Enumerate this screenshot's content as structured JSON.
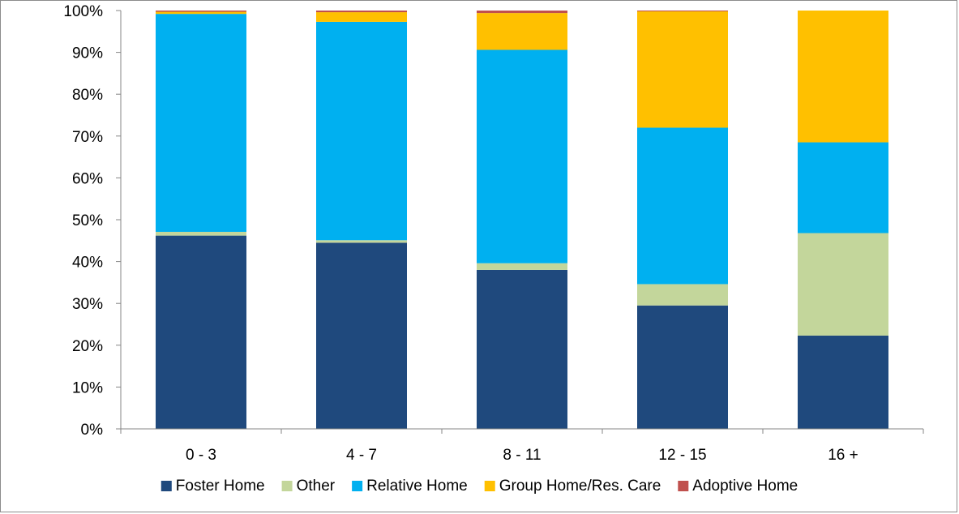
{
  "chart_data": {
    "type": "bar",
    "stacked": true,
    "percent": true,
    "categories": [
      "0 - 3",
      "4 - 7",
      "8 - 11",
      "12 - 15",
      "16 +"
    ],
    "series": [
      {
        "name": "Foster Home",
        "color": "#1F497D",
        "values": [
          46.2,
          44.5,
          38.0,
          29.5,
          22.3
        ]
      },
      {
        "name": "Other",
        "color": "#C3D69B",
        "values": [
          0.9,
          0.6,
          1.6,
          5.1,
          24.5
        ]
      },
      {
        "name": "Relative Home",
        "color": "#00B0F0",
        "values": [
          52.1,
          52.2,
          51.0,
          37.4,
          21.7
        ]
      },
      {
        "name": "Group Home/Res. Care",
        "color": "#FFC000",
        "values": [
          0.5,
          2.3,
          8.8,
          27.8,
          31.5
        ]
      },
      {
        "name": "Adoptive Home",
        "color": "#C0504D",
        "values": [
          0.3,
          0.4,
          0.6,
          0.2,
          0.0
        ]
      }
    ],
    "ylim": [
      0,
      100
    ],
    "yticks": [
      "0%",
      "10%",
      "20%",
      "30%",
      "40%",
      "50%",
      "60%",
      "70%",
      "80%",
      "90%",
      "100%"
    ],
    "grid": false,
    "legend_position": "bottom",
    "title": "",
    "xlabel": "",
    "ylabel": ""
  }
}
